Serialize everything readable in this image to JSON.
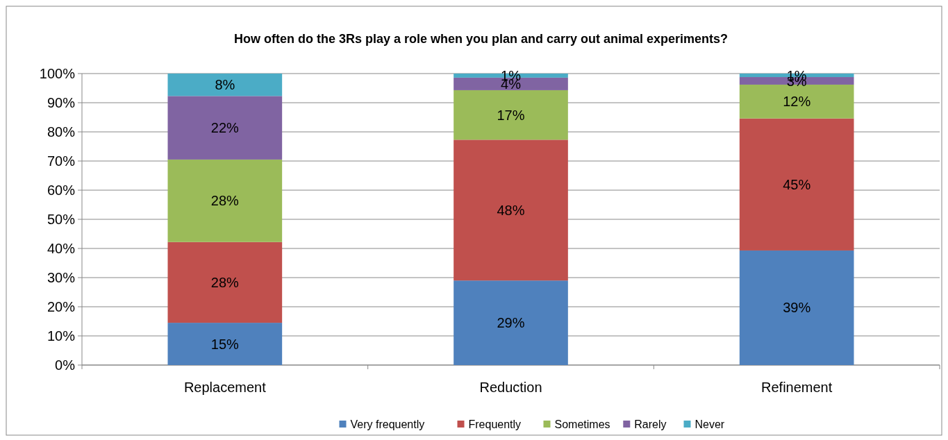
{
  "chart_data": {
    "type": "bar",
    "stacked": true,
    "title": "How often do  the 3Rs play a role when you plan and carry out animal experiments?",
    "categories": [
      "Replacement",
      "Reduction",
      "Refinement"
    ],
    "series": [
      {
        "name": "Very frequently",
        "color": "#4f81bd",
        "values": [
          14.5,
          29,
          39.3
        ],
        "value_labels": [
          "15%",
          "29%",
          "39%"
        ]
      },
      {
        "name": "Frequently",
        "color": "#c0504d",
        "values": [
          27.7,
          48.3,
          45.3
        ],
        "value_labels": [
          "28%",
          "48%",
          "45%"
        ]
      },
      {
        "name": "Sometimes",
        "color": "#9bbb59",
        "values": [
          28.3,
          17,
          11.6
        ],
        "value_labels": [
          "28%",
          "17%",
          "12%"
        ]
      },
      {
        "name": "Rarely",
        "color": "#8064a2",
        "values": [
          21.8,
          4.3,
          2.6
        ],
        "value_labels": [
          "22%",
          "4%",
          "3%"
        ]
      },
      {
        "name": "Never",
        "color": "#4bacc6",
        "values": [
          7.7,
          1.4,
          1.2
        ],
        "value_labels": [
          "8%",
          "1%",
          "1%"
        ]
      }
    ],
    "ylim": [
      0,
      100
    ],
    "yticks": [
      {
        "value": 0,
        "label": "0%"
      },
      {
        "value": 10,
        "label": "10%"
      },
      {
        "value": 20,
        "label": "20%"
      },
      {
        "value": 30,
        "label": "30%"
      },
      {
        "value": 40,
        "label": "40%"
      },
      {
        "value": 50,
        "label": "50%"
      },
      {
        "value": 60,
        "label": "60%"
      },
      {
        "value": 70,
        "label": "70%"
      },
      {
        "value": 80,
        "label": "80%"
      },
      {
        "value": 90,
        "label": "90%"
      },
      {
        "value": 100,
        "label": "100%"
      }
    ],
    "grid": "y",
    "legend": "bottom"
  }
}
